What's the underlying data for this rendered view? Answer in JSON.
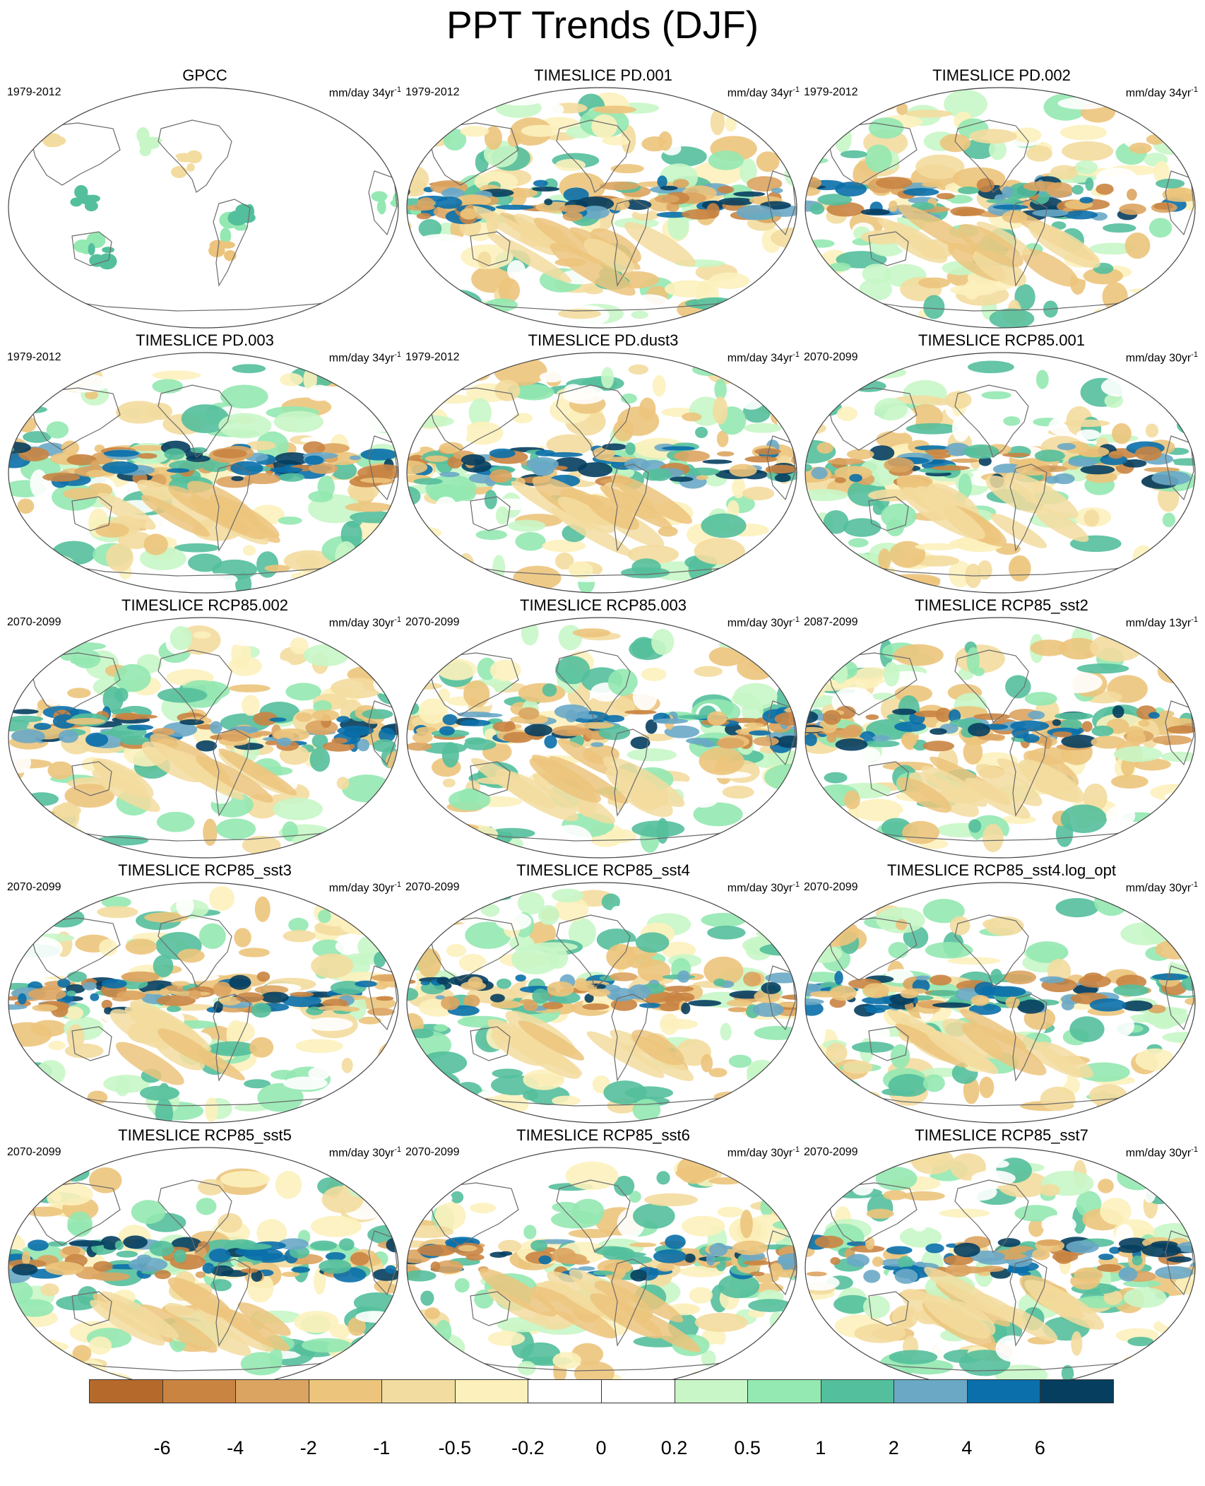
{
  "title": "PPT Trends (DJF)",
  "panels": [
    {
      "title": "GPCC",
      "period": "1979-2012",
      "units": "mm/day 34yr",
      "units_exp": "-1",
      "style": "obs"
    },
    {
      "title": "TIMESLICE PD.001",
      "period": "1979-2012",
      "units": "mm/day 34yr",
      "units_exp": "-1",
      "style": "model"
    },
    {
      "title": "TIMESLICE PD.002",
      "period": "1979-2012",
      "units": "mm/day 34yr",
      "units_exp": "-1",
      "style": "model"
    },
    {
      "title": "TIMESLICE PD.003",
      "period": "1979-2012",
      "units": "mm/day 34yr",
      "units_exp": "-1",
      "style": "model"
    },
    {
      "title": "TIMESLICE PD.dust3",
      "period": "1979-2012",
      "units": "mm/day 34yr",
      "units_exp": "-1",
      "style": "model"
    },
    {
      "title": "TIMESLICE RCP85.001",
      "period": "2070-2099",
      "units": "mm/day 30yr",
      "units_exp": "-1",
      "style": "model"
    },
    {
      "title": "TIMESLICE RCP85.002",
      "period": "2070-2099",
      "units": "mm/day 30yr",
      "units_exp": "-1",
      "style": "model"
    },
    {
      "title": "TIMESLICE RCP85.003",
      "period": "2070-2099",
      "units": "mm/day 30yr",
      "units_exp": "-1",
      "style": "model"
    },
    {
      "title": "TIMESLICE RCP85_sst2",
      "period": "2087-2099",
      "units": "mm/day 13yr",
      "units_exp": "-1",
      "style": "model"
    },
    {
      "title": "TIMESLICE RCP85_sst3",
      "period": "2070-2099",
      "units": "mm/day 30yr",
      "units_exp": "-1",
      "style": "model"
    },
    {
      "title": "TIMESLICE RCP85_sst4",
      "period": "2070-2099",
      "units": "mm/day 30yr",
      "units_exp": "-1",
      "style": "model"
    },
    {
      "title": "TIMESLICE RCP85_sst4.log_opt",
      "period": "2070-2099",
      "units": "mm/day 30yr",
      "units_exp": "-1",
      "style": "model"
    },
    {
      "title": "TIMESLICE RCP85_sst5",
      "period": "2070-2099",
      "units": "mm/day 30yr",
      "units_exp": "-1",
      "style": "model"
    },
    {
      "title": "TIMESLICE RCP85_sst6",
      "period": "2070-2099",
      "units": "mm/day 30yr",
      "units_exp": "-1",
      "style": "model"
    },
    {
      "title": "TIMESLICE RCP85_sst7",
      "period": "2070-2099",
      "units": "mm/day 30yr",
      "units_exp": "-1",
      "style": "model"
    }
  ],
  "colorbar": {
    "labels": [
      "-6",
      "-4",
      "-2",
      "-1",
      "-0.5",
      "-0.2",
      "0",
      "0.2",
      "0.5",
      "1",
      "2",
      "4",
      "6"
    ],
    "colors": [
      "#b5692b",
      "#c98442",
      "#dba461",
      "#ecc47c",
      "#f3dc9f",
      "#fcf1bc",
      "#ffffff",
      "#ffffff",
      "#c8f6c7",
      "#94e8b1",
      "#54bf9c",
      "#6aa8c6",
      "#0a6faa",
      "#053e5f"
    ]
  }
}
